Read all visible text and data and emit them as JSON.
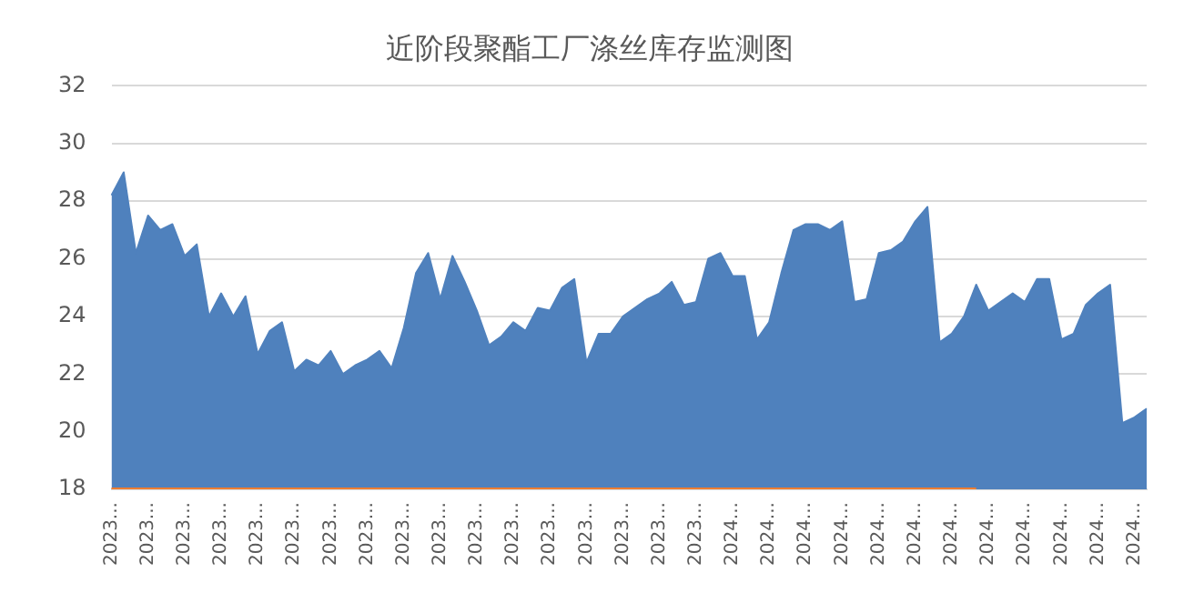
{
  "chart_data": {
    "type": "area",
    "title": "近阶段聚酯工厂涤丝库存监测图",
    "categories": [
      "2023...",
      null,
      null,
      "2023...",
      null,
      null,
      "2023...",
      null,
      null,
      "2023...",
      null,
      null,
      "2023...",
      null,
      null,
      "2023...",
      null,
      null,
      "2023...",
      null,
      null,
      "2023...",
      null,
      null,
      "2023...",
      null,
      null,
      "2023...",
      null,
      null,
      "2023...",
      null,
      null,
      "2023...",
      null,
      null,
      "2023...",
      null,
      null,
      "2023...",
      null,
      null,
      "2023...",
      null,
      null,
      "2023...",
      null,
      null,
      "2023...",
      null,
      null,
      "2024...",
      null,
      null,
      "2024...",
      null,
      null,
      "2024...",
      null,
      null,
      "2024...",
      null,
      null,
      "2024...",
      null,
      null,
      "2024...",
      null,
      null,
      "2024...",
      null,
      null,
      "2024...",
      null,
      null,
      "2024...",
      null,
      null,
      "2024...",
      null,
      null,
      "2024...",
      null,
      null,
      "2024...",
      null
    ],
    "series": [
      {
        "color": "#4f81bd",
        "values": [
          28.2,
          29.0,
          26.2,
          27.5,
          27.0,
          27.2,
          26.1,
          26.5,
          24.0,
          24.8,
          24.0,
          24.7,
          22.7,
          23.5,
          23.8,
          22.1,
          22.5,
          22.3,
          22.8,
          22.0,
          22.3,
          22.5,
          22.8,
          22.2,
          23.6,
          25.5,
          26.2,
          24.6,
          26.1,
          25.2,
          24.2,
          23.0,
          23.3,
          23.8,
          23.5,
          24.3,
          24.2,
          25.0,
          25.3,
          22.4,
          23.4,
          23.4,
          24.0,
          24.3,
          24.6,
          24.8,
          25.2,
          24.4,
          24.5,
          26.0,
          26.2,
          25.4,
          25.4,
          23.2,
          23.8,
          25.5,
          27.0,
          27.2,
          27.2,
          27.0,
          27.3,
          24.5,
          24.6,
          26.2,
          26.3,
          26.6,
          27.3,
          27.8,
          23.1,
          23.4,
          24.0,
          25.1,
          24.2,
          24.5,
          24.8,
          24.5,
          25.3,
          25.3,
          23.2,
          23.4,
          24.4,
          24.8,
          25.1,
          20.3,
          20.5,
          20.8
        ]
      },
      {
        "type": "line",
        "color": "#ed7d31",
        "values": [
          18,
          18,
          18,
          18,
          18,
          18,
          18,
          18,
          18,
          18,
          18,
          18,
          18,
          18,
          18,
          18,
          18,
          18,
          18,
          18,
          18,
          18,
          18,
          18,
          18,
          18,
          18,
          18,
          18,
          18,
          18,
          18,
          18,
          18,
          18,
          18,
          18,
          18,
          18,
          18,
          18,
          18,
          18,
          18,
          18,
          18,
          18,
          18,
          18,
          18,
          18,
          18,
          18,
          18,
          18,
          18,
          18,
          18,
          18,
          18,
          18,
          18,
          18,
          18,
          18,
          18,
          18,
          18,
          18,
          18,
          18,
          18,
          null,
          null,
          null,
          null,
          null,
          null,
          null,
          null,
          null,
          null,
          null,
          null,
          null,
          null
        ]
      }
    ],
    "ylim": [
      18,
      32
    ],
    "yticks": [
      18,
      20,
      22,
      24,
      26,
      28,
      30,
      32
    ],
    "grid": "y"
  }
}
